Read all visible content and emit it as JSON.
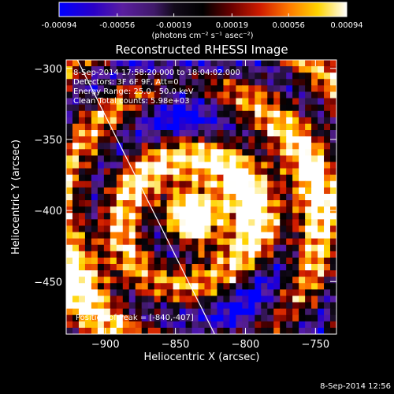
{
  "chart_data": {
    "type": "heatmap",
    "title": "Reconstructed RHESSI Image",
    "xlabel": "Heliocentric X (arcsec)",
    "ylabel": "Heliocentric Y (arcsec)",
    "xlim": [
      -928,
      -735
    ],
    "ylim": [
      -487,
      -294
    ],
    "x_ticks": [
      -900,
      -850,
      -800,
      -750
    ],
    "y_ticks": [
      -300,
      -350,
      -400,
      -450
    ],
    "colorbar": {
      "range": [
        -0.00094,
        0.00094
      ],
      "ticks": [
        -0.00094,
        -0.00056,
        -0.00019,
        0.00019,
        0.00056,
        0.00094
      ],
      "tick_labels": [
        "-0.00094",
        "-0.00056",
        "-0.00019",
        "0.00019",
        "0.00056",
        "0.00094"
      ],
      "unit_label": "(photons cm⁻² s⁻¹ asec⁻²)"
    },
    "annotations": {
      "time_range": "8-Sep-2014 17:58:20.000 to 18:04:02.000",
      "detectors": "Detectors: 3F 6F 9F, Att=0",
      "energy": "Energy Range: 25.0 - 50.0 keV",
      "algorithm": "Clean    Total counts: 5.98e+03",
      "peak": "Position of Peak = [-840,-407]"
    },
    "peak_position": [
      -840,
      -407
    ],
    "grid": false,
    "limb_line": [
      [
        -920,
        -294
      ],
      [
        -822,
        -487
      ]
    ],
    "colors": {
      "background": "#000000",
      "colormap": [
        "#0000ff",
        "#5a1ea0",
        "#401a6a",
        "#000000",
        "#6b0000",
        "#d01c00",
        "#ff7a00",
        "#ffd400",
        "#ffffff"
      ]
    }
  },
  "footer_timestamp": "8-Sep-2014 12:56"
}
